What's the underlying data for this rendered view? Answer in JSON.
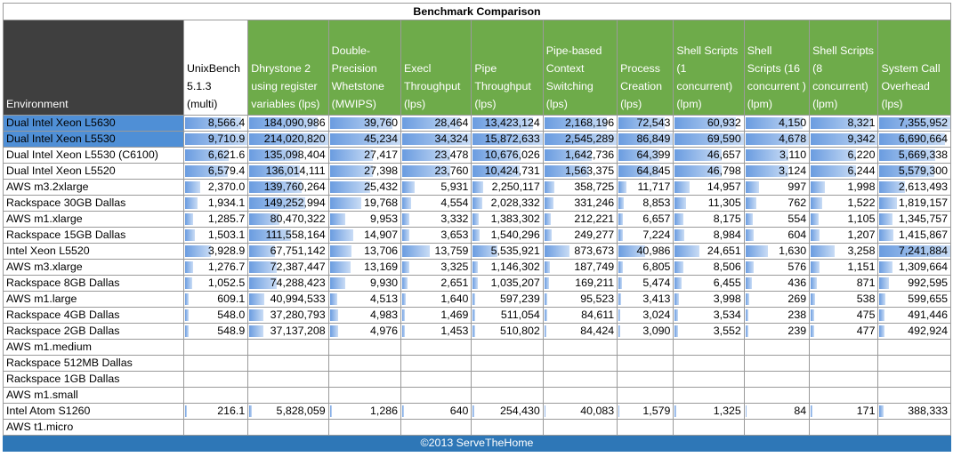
{
  "title": "Benchmark Comparison",
  "footer": "©2013 ServeTheHome",
  "colors": {
    "header_green": "#6eab4a",
    "header_dark": "#3f3f3f",
    "highlight_blue": "#4f8fd6",
    "bar_blue": "#6a9ce0",
    "footer_blue": "#2e77b7"
  },
  "columns": [
    "Environment",
    "UnixBench 5.1.3 (multi)",
    "Dhrystone 2 using register variables (lps)",
    "Double-Precision Whetstone (MWIPS)",
    "Execl Throughput (lps)",
    "Pipe Throughput (lps)",
    "Pipe-based Context Switching (lps)",
    "Process Creation (lps)",
    "Shell Scripts (1 concurrent) (lpm)",
    "Shell Scripts (16 concurrent ) (lpm)",
    "Shell Scripts (8 concurrent) (lpm)",
    "System Call Overhead (lps)"
  ],
  "column_max": [
    9710.9,
    214020820,
    45234,
    34324,
    15872633,
    2545289,
    86849,
    69590,
    4678,
    9342,
    7355952
  ],
  "rows": [
    {
      "env": "Dual Intel Xeon L5630",
      "highlight": true,
      "vals": [
        8566.4,
        184090986,
        39760,
        28464,
        13423124,
        2168196,
        72543,
        60932,
        4150,
        8321,
        7355952
      ],
      "text": [
        "8,566.4",
        "184,090,986",
        "39,760",
        "28,464",
        "13,423,124",
        "2,168,196",
        "72,543",
        "60,932",
        "4,150",
        "8,321",
        "7,355,952"
      ]
    },
    {
      "env": "Dual Intel Xeon L5530",
      "highlight": true,
      "vals": [
        9710.9,
        214020820,
        45234,
        34324,
        15872633,
        2545289,
        86849,
        69590,
        4678,
        9342,
        6690664
      ],
      "text": [
        "9,710.9",
        "214,020,820",
        "45,234",
        "34,324",
        "15,872,633",
        "2,545,289",
        "86,849",
        "69,590",
        "4,678",
        "9,342",
        "6,690,664"
      ]
    },
    {
      "env": "Dual Intel Xeon L5530 (C6100)",
      "highlight": false,
      "vals": [
        6621.6,
        135098404,
        27417,
        23478,
        10676026,
        1642736,
        64399,
        46657,
        3110,
        6220,
        5669338
      ],
      "text": [
        "6,621.6",
        "135,098,404",
        "27,417",
        "23,478",
        "10,676,026",
        "1,642,736",
        "64,399",
        "46,657",
        "3,110",
        "6,220",
        "5,669,338"
      ]
    },
    {
      "env": "Dual Intel Xeon L5520",
      "highlight": false,
      "vals": [
        6579.4,
        136014111,
        27398,
        23760,
        10424731,
        1563375,
        64845,
        46798,
        3124,
        6244,
        5579300
      ],
      "text": [
        "6,579.4",
        "136,014,111",
        "27,398",
        "23,760",
        "10,424,731",
        "1,563,375",
        "64,845",
        "46,798",
        "3,124",
        "6,244",
        "5,579,300"
      ]
    },
    {
      "env": "AWS m3.2xlarge",
      "highlight": false,
      "vals": [
        2370.0,
        139760264,
        25432,
        5931,
        2250117,
        358725,
        11717,
        14957,
        997,
        1998,
        2613493
      ],
      "text": [
        "2,370.0",
        "139,760,264",
        "25,432",
        "5,931",
        "2,250,117",
        "358,725",
        "11,717",
        "14,957",
        "997",
        "1,998",
        "2,613,493"
      ]
    },
    {
      "env": "Rackspace 30GB Dallas",
      "highlight": false,
      "vals": [
        1934.1,
        149252994,
        19768,
        4554,
        2028332,
        331246,
        8853,
        11305,
        762,
        1522,
        1819157
      ],
      "text": [
        "1,934.1",
        "149,252,994",
        "19,768",
        "4,554",
        "2,028,332",
        "331,246",
        "8,853",
        "11,305",
        "762",
        "1,522",
        "1,819,157"
      ]
    },
    {
      "env": "AWS m1.xlarge",
      "highlight": false,
      "vals": [
        1285.7,
        80470322,
        9953,
        3332,
        1383302,
        212221,
        6657,
        8175,
        554,
        1105,
        1345757
      ],
      "text": [
        "1,285.7",
        "80,470,322",
        "9,953",
        "3,332",
        "1,383,302",
        "212,221",
        "6,657",
        "8,175",
        "554",
        "1,105",
        "1,345,757"
      ]
    },
    {
      "env": "Rackspace 15GB Dallas",
      "highlight": false,
      "vals": [
        1503.1,
        111558164,
        14907,
        3653,
        1540296,
        249277,
        7224,
        8984,
        604,
        1207,
        1415867
      ],
      "text": [
        "1,503.1",
        "111,558,164",
        "14,907",
        "3,653",
        "1,540,296",
        "249,277",
        "7,224",
        "8,984",
        "604",
        "1,207",
        "1,415,867"
      ]
    },
    {
      "env": "Intel Xeon L5520",
      "highlight": false,
      "vals": [
        3928.9,
        67751142,
        13706,
        13759,
        5535921,
        873673,
        40986,
        24651,
        1630,
        3258,
        7241884
      ],
      "text": [
        "3,928.9",
        "67,751,142",
        "13,706",
        "13,759",
        "5,535,921",
        "873,673",
        "40,986",
        "24,651",
        "1,630",
        "3,258",
        "7,241,884"
      ]
    },
    {
      "env": "AWS m3.xlarge",
      "highlight": false,
      "vals": [
        1276.7,
        72387447,
        13169,
        3325,
        1146302,
        187749,
        6805,
        8506,
        576,
        1151,
        1309664
      ],
      "text": [
        "1,276.7",
        "72,387,447",
        "13,169",
        "3,325",
        "1,146,302",
        "187,749",
        "6,805",
        "8,506",
        "576",
        "1,151",
        "1,309,664"
      ]
    },
    {
      "env": "Rackspace 8GB Dallas",
      "highlight": false,
      "vals": [
        1052.5,
        74288423,
        9930,
        2651,
        1035207,
        169211,
        5474,
        6455,
        436,
        871,
        992595
      ],
      "text": [
        "1,052.5",
        "74,288,423",
        "9,930",
        "2,651",
        "1,035,207",
        "169,211",
        "5,474",
        "6,455",
        "436",
        "871",
        "992,595"
      ]
    },
    {
      "env": "AWS m1.large",
      "highlight": false,
      "vals": [
        609.1,
        40994533,
        4513,
        1640,
        597239,
        95523,
        3413,
        3998,
        269,
        538,
        599655
      ],
      "text": [
        "609.1",
        "40,994,533",
        "4,513",
        "1,640",
        "597,239",
        "95,523",
        "3,413",
        "3,998",
        "269",
        "538",
        "599,655"
      ]
    },
    {
      "env": "Rackspace 4GB Dallas",
      "highlight": false,
      "vals": [
        548.0,
        37280793,
        4983,
        1469,
        511054,
        84611,
        3024,
        3534,
        238,
        475,
        491446
      ],
      "text": [
        "548.0",
        "37,280,793",
        "4,983",
        "1,469",
        "511,054",
        "84,611",
        "3,024",
        "3,534",
        "238",
        "475",
        "491,446"
      ]
    },
    {
      "env": "Rackspace 2GB Dallas",
      "highlight": false,
      "vals": [
        548.9,
        37137208,
        4976,
        1453,
        510802,
        84424,
        3090,
        3552,
        239,
        477,
        492924
      ],
      "text": [
        "548.9",
        "37,137,208",
        "4,976",
        "1,453",
        "510,802",
        "84,424",
        "3,090",
        "3,552",
        "239",
        "477",
        "492,924"
      ]
    },
    {
      "env": "AWS m1.medium",
      "highlight": false,
      "vals": [],
      "text": []
    },
    {
      "env": "Rackspace 512MB Dallas",
      "highlight": false,
      "vals": [],
      "text": []
    },
    {
      "env": "Rackspace 1GB Dallas",
      "highlight": false,
      "vals": [],
      "text": []
    },
    {
      "env": "AWS m1.small",
      "highlight": false,
      "vals": [],
      "text": []
    },
    {
      "env": "Intel Atom S1260",
      "highlight": false,
      "vals": [
        216.1,
        5828059,
        1286,
        640,
        254430,
        40083,
        1579,
        1325,
        84,
        171,
        388333
      ],
      "text": [
        "216.1",
        "5,828,059",
        "1,286",
        "640",
        "254,430",
        "40,083",
        "1,579",
        "1,325",
        "84",
        "171",
        "388,333"
      ]
    },
    {
      "env": "AWS t1.micro",
      "highlight": false,
      "vals": [],
      "text": []
    }
  ]
}
